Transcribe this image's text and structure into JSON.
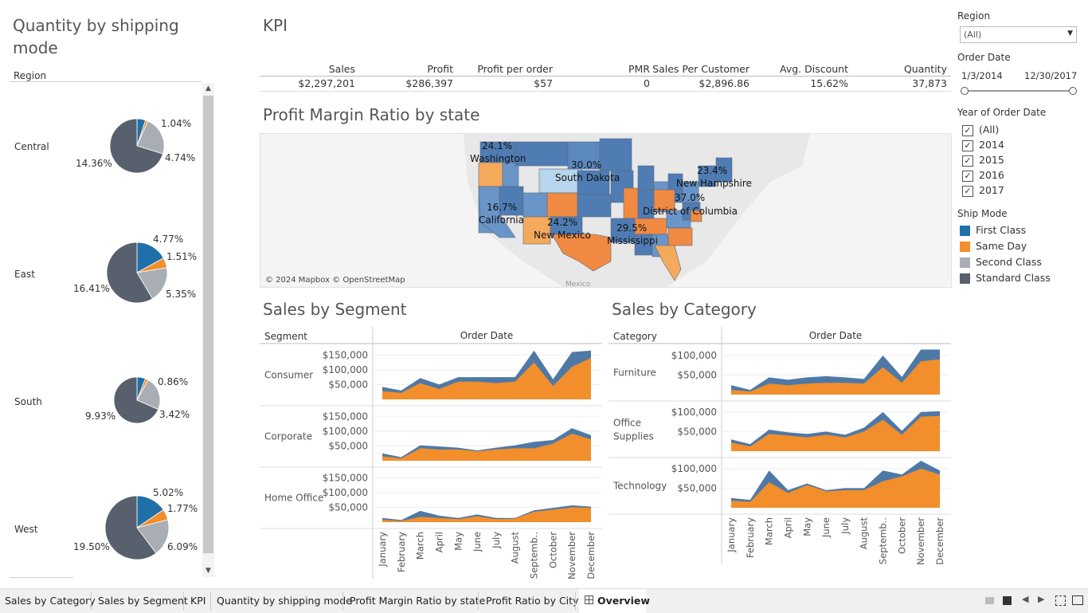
{
  "left_panel": {
    "title": "Quantity by shipping mode",
    "region_header": "Region",
    "regions": [
      {
        "name": "Central",
        "slices": [
          {
            "mode": "First Class",
            "pct": "1.04%"
          },
          {
            "mode": "Same Day",
            "pct": ""
          },
          {
            "mode": "Second Class",
            "pct": "4.74%"
          },
          {
            "mode": "Standard Class",
            "pct": "14.36%"
          }
        ]
      },
      {
        "name": "East",
        "slices": [
          {
            "mode": "First Class",
            "pct": "4.77%"
          },
          {
            "mode": "Same Day",
            "pct": "1.51%"
          },
          {
            "mode": "Second Class",
            "pct": "5.35%"
          },
          {
            "mode": "Standard Class",
            "pct": "16.41%"
          }
        ]
      },
      {
        "name": "South",
        "slices": [
          {
            "mode": "First Class",
            "pct": "0.86%"
          },
          {
            "mode": "Same Day",
            "pct": ""
          },
          {
            "mode": "Second Class",
            "pct": "3.42%"
          },
          {
            "mode": "Standard Class",
            "pct": "9.93%"
          }
        ]
      },
      {
        "name": "West",
        "slices": [
          {
            "mode": "First Class",
            "pct": "5.02%"
          },
          {
            "mode": "Same Day",
            "pct": "1.77%"
          },
          {
            "mode": "Second Class",
            "pct": "6.09%"
          },
          {
            "mode": "Standard Class",
            "pct": "19.50%"
          }
        ]
      }
    ]
  },
  "kpi": {
    "title": "KPI",
    "headers": [
      "Sales",
      "Profit",
      "Profit per order",
      "PMR",
      "Sales Per Customer",
      "Avg. Discount",
      "Quantity"
    ],
    "values": [
      "$2,297,201",
      "$286,397",
      "$57",
      "0",
      "$2,896.86",
      "15.62%",
      "37,873"
    ]
  },
  "map": {
    "title": "Profit Margin Ratio by state",
    "attribution": "© 2024 Mapbox © OpenStreetMap",
    "mexico_label": "Mexico",
    "labels": [
      {
        "pct": "24.1%",
        "state": "Washington"
      },
      {
        "pct": "30.0%",
        "state": "South Dakota"
      },
      {
        "pct": "23.4%",
        "state": "New Hampshire"
      },
      {
        "pct": "37.0%",
        "state": "District of Columbia"
      },
      {
        "pct": "16.7%",
        "state": "California"
      },
      {
        "pct": "24.2%",
        "state": "New Mexico"
      },
      {
        "pct": "29.5%",
        "state": "Mississippi"
      }
    ]
  },
  "filters": {
    "region": {
      "label": "Region",
      "value": "(All)"
    },
    "order_date": {
      "label": "Order Date",
      "start": "1/3/2014",
      "end": "12/30/2017"
    },
    "year": {
      "label": "Year of Order Date",
      "options": [
        "(All)",
        "2014",
        "2015",
        "2016",
        "2017"
      ]
    },
    "ship_mode": {
      "label": "Ship Mode",
      "items": [
        {
          "name": "First Class",
          "color": "#1f6fa8"
        },
        {
          "name": "Same Day",
          "color": "#f28e2b"
        },
        {
          "name": "Second Class",
          "color": "#a9aeb5"
        },
        {
          "name": "Standard Class",
          "color": "#57606c"
        }
      ]
    }
  },
  "segment_chart": {
    "title": "Sales by Segment",
    "row_header": "Segment",
    "col_header": "Order Date",
    "rows": [
      "Consumer",
      "Corporate",
      "Home Office"
    ],
    "ticks": [
      "$150,000",
      "$100,000",
      "$50,000"
    ]
  },
  "category_chart": {
    "title": "Sales by Category",
    "row_header": "Category",
    "col_header": "Order Date",
    "rows": [
      "Furniture",
      "Office Supplies",
      "Technology"
    ],
    "ticks": [
      "$100,000",
      "$50,000"
    ]
  },
  "months": [
    "January",
    "February",
    "March",
    "April",
    "May",
    "June",
    "July",
    "August",
    "Septemb..",
    "October",
    "November",
    "December"
  ],
  "chart_data": [
    {
      "type": "area",
      "title": "Sales by Segment",
      "x": [
        "January",
        "February",
        "March",
        "April",
        "May",
        "June",
        "July",
        "August",
        "September",
        "October",
        "November",
        "December"
      ],
      "ylim": [
        0,
        175000
      ],
      "panels": [
        {
          "name": "Consumer",
          "series": [
            {
              "values": [
                28000,
                22000,
                55000,
                35000,
                60000,
                60000,
                55000,
                60000,
                125000,
                45000,
                110000,
                140000
              ]
            },
            {
              "values": [
                42000,
                30000,
                72000,
                50000,
                75000,
                75000,
                75000,
                75000,
                165000,
                68000,
                160000,
                165000
              ]
            }
          ]
        },
        {
          "name": "Corporate",
          "series": [
            {
              "values": [
                15000,
                8000,
                42000,
                38000,
                38000,
                32000,
                38000,
                42000,
                42000,
                58000,
                92000,
                72000
              ]
            },
            {
              "values": [
                25000,
                12000,
                52000,
                48000,
                44000,
                35000,
                44000,
                52000,
                64000,
                70000,
                110000,
                86000
              ]
            }
          ]
        },
        {
          "name": "Home Office",
          "series": [
            {
              "values": [
                8000,
                4000,
                18000,
                14000,
                10000,
                20000,
                10000,
                12000,
                35000,
                42000,
                50000,
                48000
              ]
            },
            {
              "values": [
                14000,
                7000,
                38000,
                22000,
                14000,
                26000,
                14000,
                14000,
                40000,
                48000,
                57000,
                52000
              ]
            }
          ]
        }
      ]
    },
    {
      "type": "area",
      "title": "Sales by Category",
      "x": [
        "January",
        "February",
        "March",
        "April",
        "May",
        "June",
        "July",
        "August",
        "September",
        "October",
        "November",
        "December"
      ],
      "ylim": [
        0,
        120000
      ],
      "panels": [
        {
          "name": "Furniture",
          "series": [
            {
              "values": [
                12000,
                8000,
                28000,
                24000,
                28000,
                30000,
                30000,
                28000,
                70000,
                30000,
                85000,
                90000
              ]
            },
            {
              "values": [
                24000,
                12000,
                44000,
                38000,
                44000,
                47000,
                44000,
                40000,
                100000,
                45000,
                115000,
                115000
              ]
            }
          ]
        },
        {
          "name": "Office Supplies",
          "series": [
            {
              "values": [
                22000,
                12000,
                44000,
                40000,
                35000,
                42000,
                35000,
                50000,
                80000,
                42000,
                88000,
                90000
              ]
            },
            {
              "values": [
                30000,
                18000,
                55000,
                48000,
                44000,
                50000,
                42000,
                60000,
                100000,
                52000,
                100000,
                102000
              ]
            }
          ]
        },
        {
          "name": "Technology",
          "series": [
            {
              "values": [
                18000,
                15000,
                65000,
                38000,
                58000,
                42000,
                45000,
                45000,
                68000,
                80000,
                100000,
                85000
              ]
            },
            {
              "values": [
                25000,
                20000,
                95000,
                45000,
                62000,
                45000,
                50000,
                50000,
                95000,
                85000,
                120000,
                95000
              ]
            }
          ]
        }
      ]
    }
  ],
  "tabs": [
    "Sales by Category",
    "Sales by Segment",
    "KPI",
    "Quantity by shipping mode",
    "Profit Margin Ratio by state",
    "Profit Ratio by City",
    "Overview"
  ]
}
